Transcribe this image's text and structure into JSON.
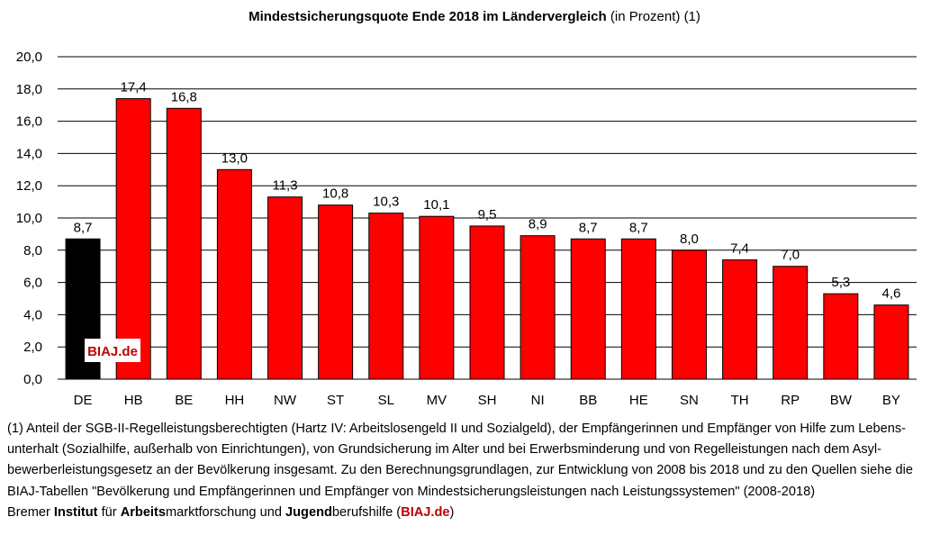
{
  "chart_data": {
    "type": "bar",
    "title_bold": "Mindestsicherungsquote Ende 2018 im Ländervergleich",
    "title_rest": " (in Prozent) (1)",
    "categories": [
      "DE",
      "HB",
      "BE",
      "HH",
      "NW",
      "ST",
      "SL",
      "MV",
      "SH",
      "NI",
      "BB",
      "HE",
      "SN",
      "TH",
      "RP",
      "BW",
      "BY"
    ],
    "values": [
      8.7,
      17.4,
      16.8,
      13.0,
      11.3,
      10.8,
      10.3,
      10.1,
      9.5,
      8.9,
      8.7,
      8.7,
      8.0,
      7.4,
      7.0,
      5.3,
      4.6
    ],
    "value_labels": [
      "8,7",
      "17,4",
      "16,8",
      "13,0",
      "11,3",
      "10,8",
      "10,3",
      "10,1",
      "9,5",
      "8,9",
      "8,7",
      "8,7",
      "8,0",
      "7,4",
      "7,0",
      "5,3",
      "4,6"
    ],
    "ylim": [
      0,
      20
    ],
    "yticks": [
      "0,0",
      "2,0",
      "4,0",
      "6,0",
      "8,0",
      "10,0",
      "12,0",
      "14,0",
      "16,0",
      "18,0",
      "20,0"
    ],
    "grid": true,
    "colors": {
      "first_bar": "#000000",
      "bars": "#ff0000",
      "grid": "#000000"
    },
    "watermark": "BIAJ.de"
  },
  "footnote": {
    "lines": [
      "(1) Anteil der SGB-II-Regelleistungsberechtigten (Hartz IV: Arbeitslosengeld II und Sozialgeld), der Empfängerinnen und Empfänger von Hilfe zum Lebens-",
      "unterhalt (Sozialhilfe, außerhalb von Einrichtungen), von Grundsicherung im Alter und bei Erwerbsminderung und von Regelleistungen nach dem Asyl-",
      "bewerberleistungsgesetz an der Bevölkerung insgesamt. Zu den Berechnungsgrundlagen, zur Entwicklung von 2008 bis 2018 und zu den Quellen siehe die",
      "BIAJ-Tabellen \"Bevölkerung und Empfängerinnen und Empfänger von Mindestsicherungsleistungen nach Leistungssystemen\" (2008-2018)"
    ],
    "credit": {
      "p1": "Bremer ",
      "b1": "Institut",
      "p2": " für ",
      "b2": "Arbeits",
      "p3": "marktforschung und ",
      "b3": "Jugend",
      "p4": "berufshilfe (",
      "brand": "BIAJ.de",
      "p5": ")"
    }
  }
}
